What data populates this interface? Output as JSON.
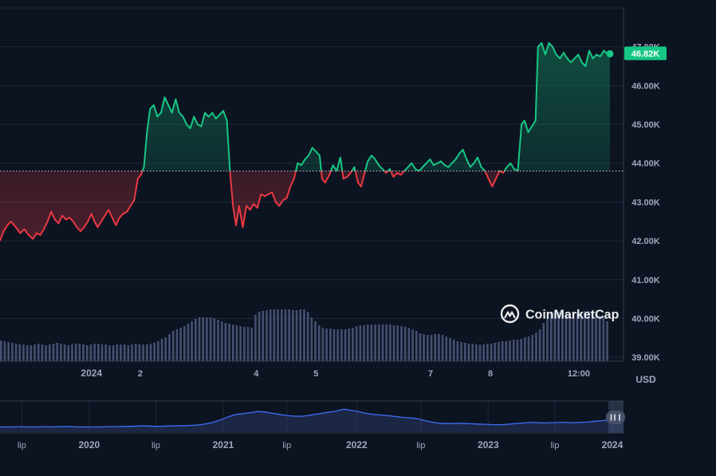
{
  "chart_data": {
    "type": "line",
    "reference_price": 43800,
    "current_price_label": "46.82K",
    "currency_label": "USD",
    "watermark": "CoinMarketCap",
    "y_axis": {
      "min": 38900,
      "max": 48000,
      "ticks": [
        {
          "value": 47000,
          "label": "47.00K"
        },
        {
          "value": 46000,
          "label": "46.00K"
        },
        {
          "value": 45000,
          "label": "45.00K"
        },
        {
          "value": 44000,
          "label": "44.00K"
        },
        {
          "value": 43000,
          "label": "43.00K"
        },
        {
          "value": 42000,
          "label": "42.00K"
        },
        {
          "value": 41000,
          "label": "41.00K"
        },
        {
          "value": 40000,
          "label": "40.00K"
        },
        {
          "value": 39000,
          "label": "39.00K"
        }
      ]
    },
    "x_axis": {
      "ticks": [
        {
          "label": "2024",
          "t": 0.15
        },
        {
          "label": "2",
          "t": 0.23
        },
        {
          "label": "4",
          "t": 0.42
        },
        {
          "label": "5",
          "t": 0.518
        },
        {
          "label": "7",
          "t": 0.706
        },
        {
          "label": "8",
          "t": 0.804
        },
        {
          "label": "12:00",
          "t": 0.949
        }
      ]
    },
    "price_points": [
      [
        0.0,
        42000
      ],
      [
        0.006,
        42250
      ],
      [
        0.012,
        42400
      ],
      [
        0.018,
        42500
      ],
      [
        0.026,
        42350
      ],
      [
        0.033,
        42200
      ],
      [
        0.04,
        42300
      ],
      [
        0.047,
        42150
      ],
      [
        0.054,
        42050
      ],
      [
        0.06,
        42200
      ],
      [
        0.066,
        42150
      ],
      [
        0.072,
        42300
      ],
      [
        0.078,
        42500
      ],
      [
        0.084,
        42750
      ],
      [
        0.09,
        42550
      ],
      [
        0.096,
        42450
      ],
      [
        0.102,
        42650
      ],
      [
        0.108,
        42550
      ],
      [
        0.114,
        42600
      ],
      [
        0.12,
        42500
      ],
      [
        0.126,
        42350
      ],
      [
        0.132,
        42250
      ],
      [
        0.138,
        42350
      ],
      [
        0.144,
        42500
      ],
      [
        0.15,
        42700
      ],
      [
        0.155,
        42500
      ],
      [
        0.16,
        42350
      ],
      [
        0.166,
        42500
      ],
      [
        0.172,
        42650
      ],
      [
        0.178,
        42800
      ],
      [
        0.184,
        42600
      ],
      [
        0.19,
        42400
      ],
      [
        0.196,
        42600
      ],
      [
        0.202,
        42700
      ],
      [
        0.208,
        42750
      ],
      [
        0.214,
        42900
      ],
      [
        0.22,
        43050
      ],
      [
        0.226,
        43600
      ],
      [
        0.231,
        43700
      ],
      [
        0.236,
        43900
      ],
      [
        0.241,
        44800
      ],
      [
        0.246,
        45400
      ],
      [
        0.252,
        45500
      ],
      [
        0.258,
        45200
      ],
      [
        0.264,
        45300
      ],
      [
        0.27,
        45700
      ],
      [
        0.276,
        45500
      ],
      [
        0.282,
        45300
      ],
      [
        0.288,
        45650
      ],
      [
        0.294,
        45300
      ],
      [
        0.3,
        45200
      ],
      [
        0.306,
        45000
      ],
      [
        0.312,
        44900
      ],
      [
        0.318,
        45200
      ],
      [
        0.324,
        45000
      ],
      [
        0.33,
        44950
      ],
      [
        0.336,
        45300
      ],
      [
        0.342,
        45200
      ],
      [
        0.348,
        45300
      ],
      [
        0.354,
        45150
      ],
      [
        0.36,
        45250
      ],
      [
        0.366,
        45350
      ],
      [
        0.372,
        45100
      ],
      [
        0.377,
        43800
      ],
      [
        0.382,
        42900
      ],
      [
        0.387,
        42400
      ],
      [
        0.392,
        42900
      ],
      [
        0.398,
        42350
      ],
      [
        0.404,
        42900
      ],
      [
        0.41,
        42800
      ],
      [
        0.416,
        42950
      ],
      [
        0.422,
        42850
      ],
      [
        0.428,
        43200
      ],
      [
        0.434,
        43150
      ],
      [
        0.44,
        43200
      ],
      [
        0.446,
        43250
      ],
      [
        0.452,
        43000
      ],
      [
        0.458,
        42900
      ],
      [
        0.464,
        43050
      ],
      [
        0.47,
        43100
      ],
      [
        0.476,
        43400
      ],
      [
        0.482,
        43600
      ],
      [
        0.488,
        44000
      ],
      [
        0.494,
        43950
      ],
      [
        0.5,
        44100
      ],
      [
        0.506,
        44200
      ],
      [
        0.512,
        44400
      ],
      [
        0.518,
        44300
      ],
      [
        0.524,
        44200
      ],
      [
        0.528,
        43600
      ],
      [
        0.533,
        43500
      ],
      [
        0.54,
        43700
      ],
      [
        0.546,
        43950
      ],
      [
        0.552,
        43800
      ],
      [
        0.558,
        44150
      ],
      [
        0.563,
        43600
      ],
      [
        0.569,
        43650
      ],
      [
        0.575,
        43750
      ],
      [
        0.581,
        43900
      ],
      [
        0.587,
        43500
      ],
      [
        0.592,
        43400
      ],
      [
        0.597,
        43700
      ],
      [
        0.603,
        44050
      ],
      [
        0.609,
        44200
      ],
      [
        0.615,
        44100
      ],
      [
        0.621,
        43950
      ],
      [
        0.627,
        43850
      ],
      [
        0.633,
        43750
      ],
      [
        0.639,
        43850
      ],
      [
        0.645,
        43650
      ],
      [
        0.651,
        43750
      ],
      [
        0.657,
        43700
      ],
      [
        0.663,
        43800
      ],
      [
        0.669,
        43900
      ],
      [
        0.675,
        44000
      ],
      [
        0.681,
        43850
      ],
      [
        0.687,
        43800
      ],
      [
        0.693,
        43900
      ],
      [
        0.699,
        44000
      ],
      [
        0.705,
        44100
      ],
      [
        0.711,
        43950
      ],
      [
        0.717,
        44000
      ],
      [
        0.723,
        44050
      ],
      [
        0.729,
        43950
      ],
      [
        0.735,
        43900
      ],
      [
        0.741,
        44000
      ],
      [
        0.747,
        44100
      ],
      [
        0.753,
        44250
      ],
      [
        0.759,
        44350
      ],
      [
        0.765,
        44100
      ],
      [
        0.771,
        43900
      ],
      [
        0.777,
        44000
      ],
      [
        0.783,
        44150
      ],
      [
        0.789,
        43900
      ],
      [
        0.795,
        43800
      ],
      [
        0.801,
        43600
      ],
      [
        0.807,
        43400
      ],
      [
        0.813,
        43600
      ],
      [
        0.819,
        43800
      ],
      [
        0.825,
        43750
      ],
      [
        0.831,
        43900
      ],
      [
        0.837,
        44000
      ],
      [
        0.843,
        43850
      ],
      [
        0.849,
        43800
      ],
      [
        0.855,
        45000
      ],
      [
        0.86,
        45100
      ],
      [
        0.866,
        44800
      ],
      [
        0.872,
        44950
      ],
      [
        0.878,
        45100
      ],
      [
        0.882,
        47000
      ],
      [
        0.888,
        47100
      ],
      [
        0.894,
        46800
      ],
      [
        0.9,
        47100
      ],
      [
        0.906,
        47000
      ],
      [
        0.912,
        46800
      ],
      [
        0.918,
        46700
      ],
      [
        0.924,
        46850
      ],
      [
        0.93,
        46700
      ],
      [
        0.936,
        46600
      ],
      [
        0.942,
        46700
      ],
      [
        0.948,
        46800
      ],
      [
        0.954,
        46600
      ],
      [
        0.96,
        46500
      ],
      [
        0.966,
        46900
      ],
      [
        0.972,
        46700
      ],
      [
        0.978,
        46800
      ],
      [
        0.984,
        46750
      ],
      [
        0.99,
        46900
      ],
      [
        0.996,
        46820
      ],
      [
        1.0,
        46820
      ]
    ],
    "volume_levels": [
      0.26,
      0.25,
      0.24,
      0.23,
      0.22,
      0.21,
      0.21,
      0.2,
      0.2,
      0.21,
      0.22,
      0.21,
      0.2,
      0.21,
      0.22,
      0.23,
      0.22,
      0.21,
      0.2,
      0.21,
      0.22,
      0.22,
      0.21,
      0.2,
      0.21,
      0.22,
      0.22,
      0.21,
      0.21,
      0.2,
      0.2,
      0.21,
      0.21,
      0.21,
      0.2,
      0.21,
      0.22,
      0.21,
      0.21,
      0.21,
      0.22,
      0.23,
      0.25,
      0.28,
      0.3,
      0.34,
      0.38,
      0.4,
      0.42,
      0.44,
      0.47,
      0.5,
      0.53,
      0.55,
      0.55,
      0.55,
      0.55,
      0.54,
      0.52,
      0.5,
      0.48,
      0.47,
      0.46,
      0.45,
      0.44,
      0.43,
      0.43,
      0.42,
      0.58,
      0.62,
      0.63,
      0.64,
      0.65,
      0.65,
      0.65,
      0.65,
      0.65,
      0.65,
      0.64,
      0.64,
      0.65,
      0.65,
      0.62,
      0.55,
      0.5,
      0.45,
      0.42,
      0.41,
      0.41,
      0.4,
      0.4,
      0.4,
      0.4,
      0.41,
      0.42,
      0.44,
      0.45,
      0.45,
      0.46,
      0.46,
      0.46,
      0.46,
      0.46,
      0.46,
      0.46,
      0.45,
      0.45,
      0.44,
      0.43,
      0.42,
      0.4,
      0.38,
      0.35,
      0.34,
      0.33,
      0.33,
      0.34,
      0.34,
      0.33,
      0.31,
      0.29,
      0.27,
      0.25,
      0.24,
      0.23,
      0.22,
      0.22,
      0.21,
      0.21,
      0.21,
      0.22,
      0.22,
      0.23,
      0.24,
      0.25,
      0.25,
      0.26,
      0.27,
      0.27,
      0.28,
      0.3,
      0.31,
      0.33,
      0.36,
      0.4,
      0.48,
      0.55,
      0.6,
      0.62,
      0.62,
      0.62,
      0.61,
      0.6,
      0.6,
      0.61,
      0.62,
      0.63,
      0.63,
      0.62,
      0.6,
      0.57,
      0.55,
      0.5
    ],
    "overview": {
      "x_ticks": [
        {
          "label": "lip",
          "t": 0.035
        },
        {
          "label": "2020",
          "t": 0.143
        },
        {
          "label": "lip",
          "t": 0.25
        },
        {
          "label": "2021",
          "t": 0.358
        },
        {
          "label": "lip",
          "t": 0.46
        },
        {
          "label": "2022",
          "t": 0.572
        },
        {
          "label": "lip",
          "t": 0.675
        },
        {
          "label": "2023",
          "t": 0.783
        },
        {
          "label": "lip",
          "t": 0.89
        },
        {
          "label": "2024",
          "t": 0.982
        }
      ],
      "levels": [
        0.18,
        0.18,
        0.18,
        0.19,
        0.18,
        0.18,
        0.19,
        0.18,
        0.19,
        0.2,
        0.19,
        0.18,
        0.18,
        0.18,
        0.18,
        0.19,
        0.19,
        0.2,
        0.2,
        0.21,
        0.22,
        0.21,
        0.2,
        0.21,
        0.22,
        0.22,
        0.23,
        0.24,
        0.26,
        0.3,
        0.36,
        0.45,
        0.55,
        0.62,
        0.65,
        0.68,
        0.72,
        0.7,
        0.66,
        0.62,
        0.58,
        0.56,
        0.55,
        0.58,
        0.62,
        0.66,
        0.7,
        0.74,
        0.8,
        0.76,
        0.72,
        0.66,
        0.62,
        0.6,
        0.58,
        0.55,
        0.52,
        0.5,
        0.48,
        0.42,
        0.36,
        0.32,
        0.3,
        0.3,
        0.31,
        0.3,
        0.29,
        0.28,
        0.27,
        0.26,
        0.26,
        0.28,
        0.3,
        0.32,
        0.34,
        0.33,
        0.32,
        0.33,
        0.34,
        0.34,
        0.33,
        0.34,
        0.35,
        0.38,
        0.4,
        0.42,
        0.46,
        0.5
      ]
    }
  }
}
